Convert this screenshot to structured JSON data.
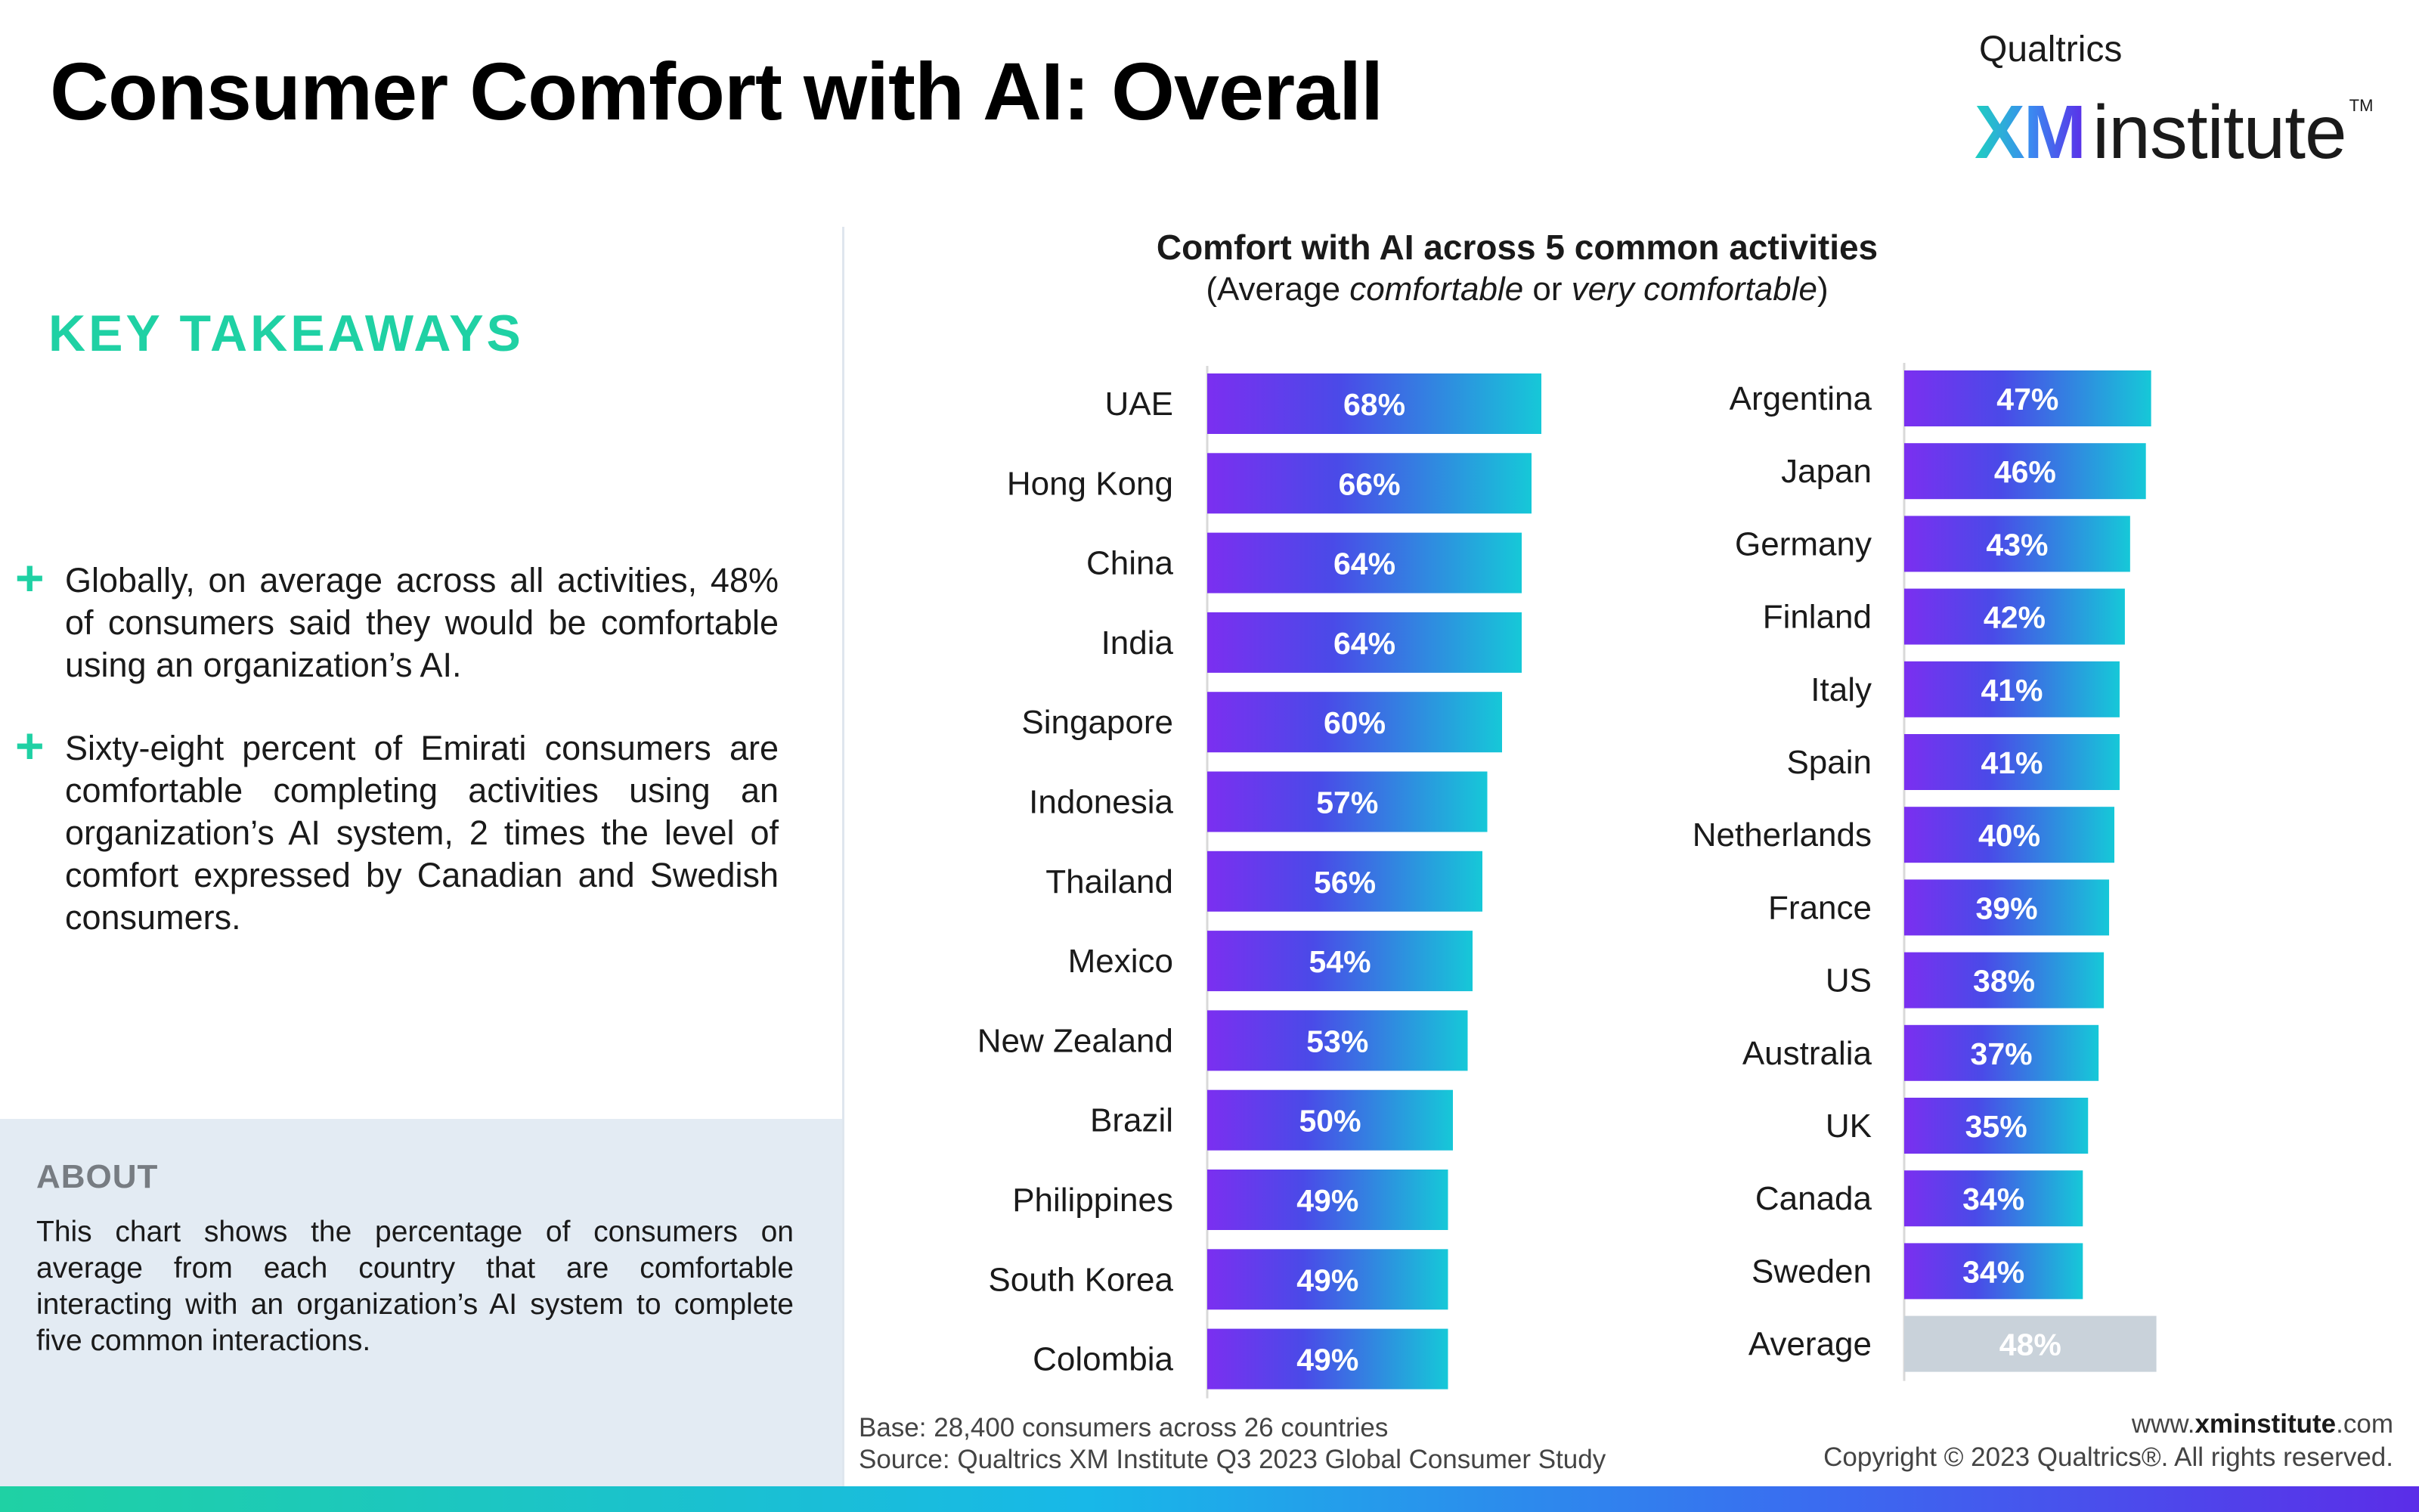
{
  "title": "Consumer Comfort with AI: Overall",
  "logo": {
    "small": "Qualtrics",
    "xm": "XM",
    "institute": "institute",
    "tm": "TM"
  },
  "takeaways": {
    "heading": "KEY TAKEAWAYS",
    "items": [
      "Globally, on average across all activities, 48% of consumers said they would be comfortable using an organization’s AI.",
      "Sixty-eight percent of Emirati consumers are comfortable completing activities using an organization’s AI system, 2 times the level of comfort expressed by Canadian and Swedish consumers."
    ]
  },
  "about": {
    "title": "ABOUT",
    "text": "This chart shows the percentage of consumers on average from each country that are comfortable interacting with an organization’s AI system to complete five common interactions."
  },
  "footer": {
    "base": "Base: 28,400 consumers across 26 countries",
    "source": "Source: Qualtrics XM Institute Q3 2023 Global Consumer Study",
    "site_prefix": "www.",
    "site_bold": "xminstitute",
    "site_suffix": ".com",
    "copyright": "Copyright © 2023 Qualtrics®. All rights reserved."
  },
  "colors": {
    "bar_start": "#7b2ff0",
    "bar_mid": "#4a4ae8",
    "bar_end": "#16c8d8",
    "average_bar": "#c9d2da",
    "accent": "#1fd1a4"
  },
  "chart_data": {
    "type": "bar",
    "orientation": "horizontal",
    "title": "Comfort with AI across 5 common activities",
    "subtitle": {
      "before": "(Average ",
      "em1": "comfortable",
      "middle": " or ",
      "em2": "very comfortable",
      "after": ")"
    },
    "unit": "%",
    "panels": [
      {
        "categories": [
          "UAE",
          "Hong Kong",
          "China",
          "India",
          "Singapore",
          "Indonesia",
          "Thailand",
          "Mexico",
          "New Zealand",
          "Brazil",
          "Philippines",
          "South Korea",
          "Colombia"
        ],
        "values": [
          68,
          66,
          64,
          64,
          60,
          57,
          56,
          54,
          53,
          50,
          49,
          49,
          49
        ]
      },
      {
        "categories": [
          "Argentina",
          "Japan",
          "Germany",
          "Finland",
          "Italy",
          "Spain",
          "Netherlands",
          "France",
          "US",
          "Australia",
          "UK",
          "Canada",
          "Sweden",
          "Average"
        ],
        "values": [
          47,
          46,
          43,
          42,
          41,
          41,
          40,
          39,
          38,
          37,
          35,
          34,
          34,
          48
        ],
        "highlight": "Average"
      }
    ]
  }
}
